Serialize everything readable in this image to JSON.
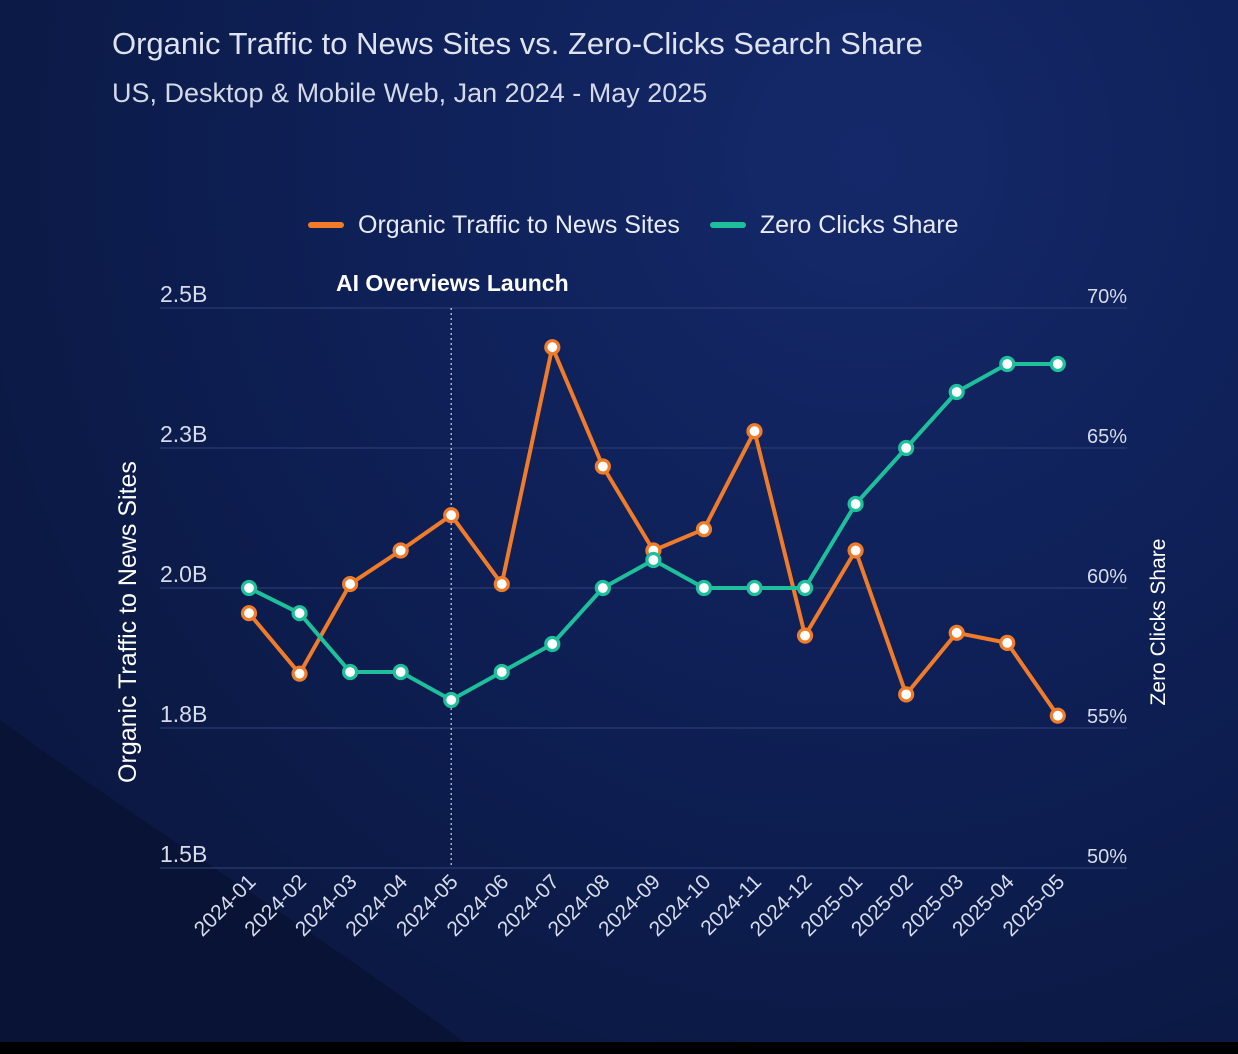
{
  "colors": {
    "background": "#0c1a48",
    "organic": "#f07c2a",
    "zero_clicks": "#1ebf9b",
    "grid": "#2a3b72",
    "text": "#dfe3ef",
    "marker_fill": "#ffffff"
  },
  "chart_data": {
    "type": "line",
    "title": "Organic Traffic to News Sites vs. Zero-Clicks Search Share",
    "subtitle": "US, Desktop & Mobile Web, Jan 2024 - May 2025",
    "x": [
      "2024-01",
      "2024-02",
      "2024-03",
      "2024-04",
      "2024-05",
      "2024-06",
      "2024-07",
      "2024-08",
      "2024-09",
      "2024-10",
      "2024-11",
      "2024-12",
      "2025-01",
      "2025-02",
      "2025-03",
      "2025-04",
      "2025-05"
    ],
    "ylabel_left": "Organic Traffic to News Sites",
    "ylabel_right": "Zero Clicks Share",
    "y_left": {
      "ticks": [
        1.5,
        1.75,
        2.0,
        2.25,
        2.5
      ],
      "tick_labels": [
        "1.5B",
        "1.8B",
        "2.0B",
        "2.3B",
        "2.5B"
      ],
      "range": [
        1.5,
        2.5
      ]
    },
    "y_right": {
      "ticks": [
        50,
        55,
        60,
        65,
        70
      ],
      "tick_labels": [
        "50%",
        "55%",
        "60%",
        "65%",
        "70%"
      ],
      "range": [
        50,
        70
      ]
    },
    "grid": true,
    "legend_position": "top",
    "series": [
      {
        "name": "Organic Traffic to News Sites",
        "axis": "left",
        "color_key": "organic",
        "values": [
          1.955,
          1.847,
          2.007,
          2.067,
          2.13,
          2.007,
          2.43,
          2.217,
          2.067,
          2.105,
          2.28,
          1.915,
          2.067,
          1.81,
          1.92,
          1.902,
          1.772
        ]
      },
      {
        "name": "Zero Clicks Share",
        "axis": "right",
        "color_key": "zero_clicks",
        "values": [
          60,
          59.1,
          57,
          57,
          56,
          57,
          58,
          60,
          61,
          60,
          60,
          60,
          63,
          65,
          67,
          68,
          68
        ]
      }
    ],
    "annotations": [
      {
        "label": "AI Overviews Launch",
        "x": "2024-05"
      }
    ]
  },
  "legend": {
    "items": [
      {
        "label": "Organic Traffic to News Sites",
        "color_key": "organic"
      },
      {
        "label": "Zero Clicks Share",
        "color_key": "zero_clicks"
      }
    ]
  }
}
